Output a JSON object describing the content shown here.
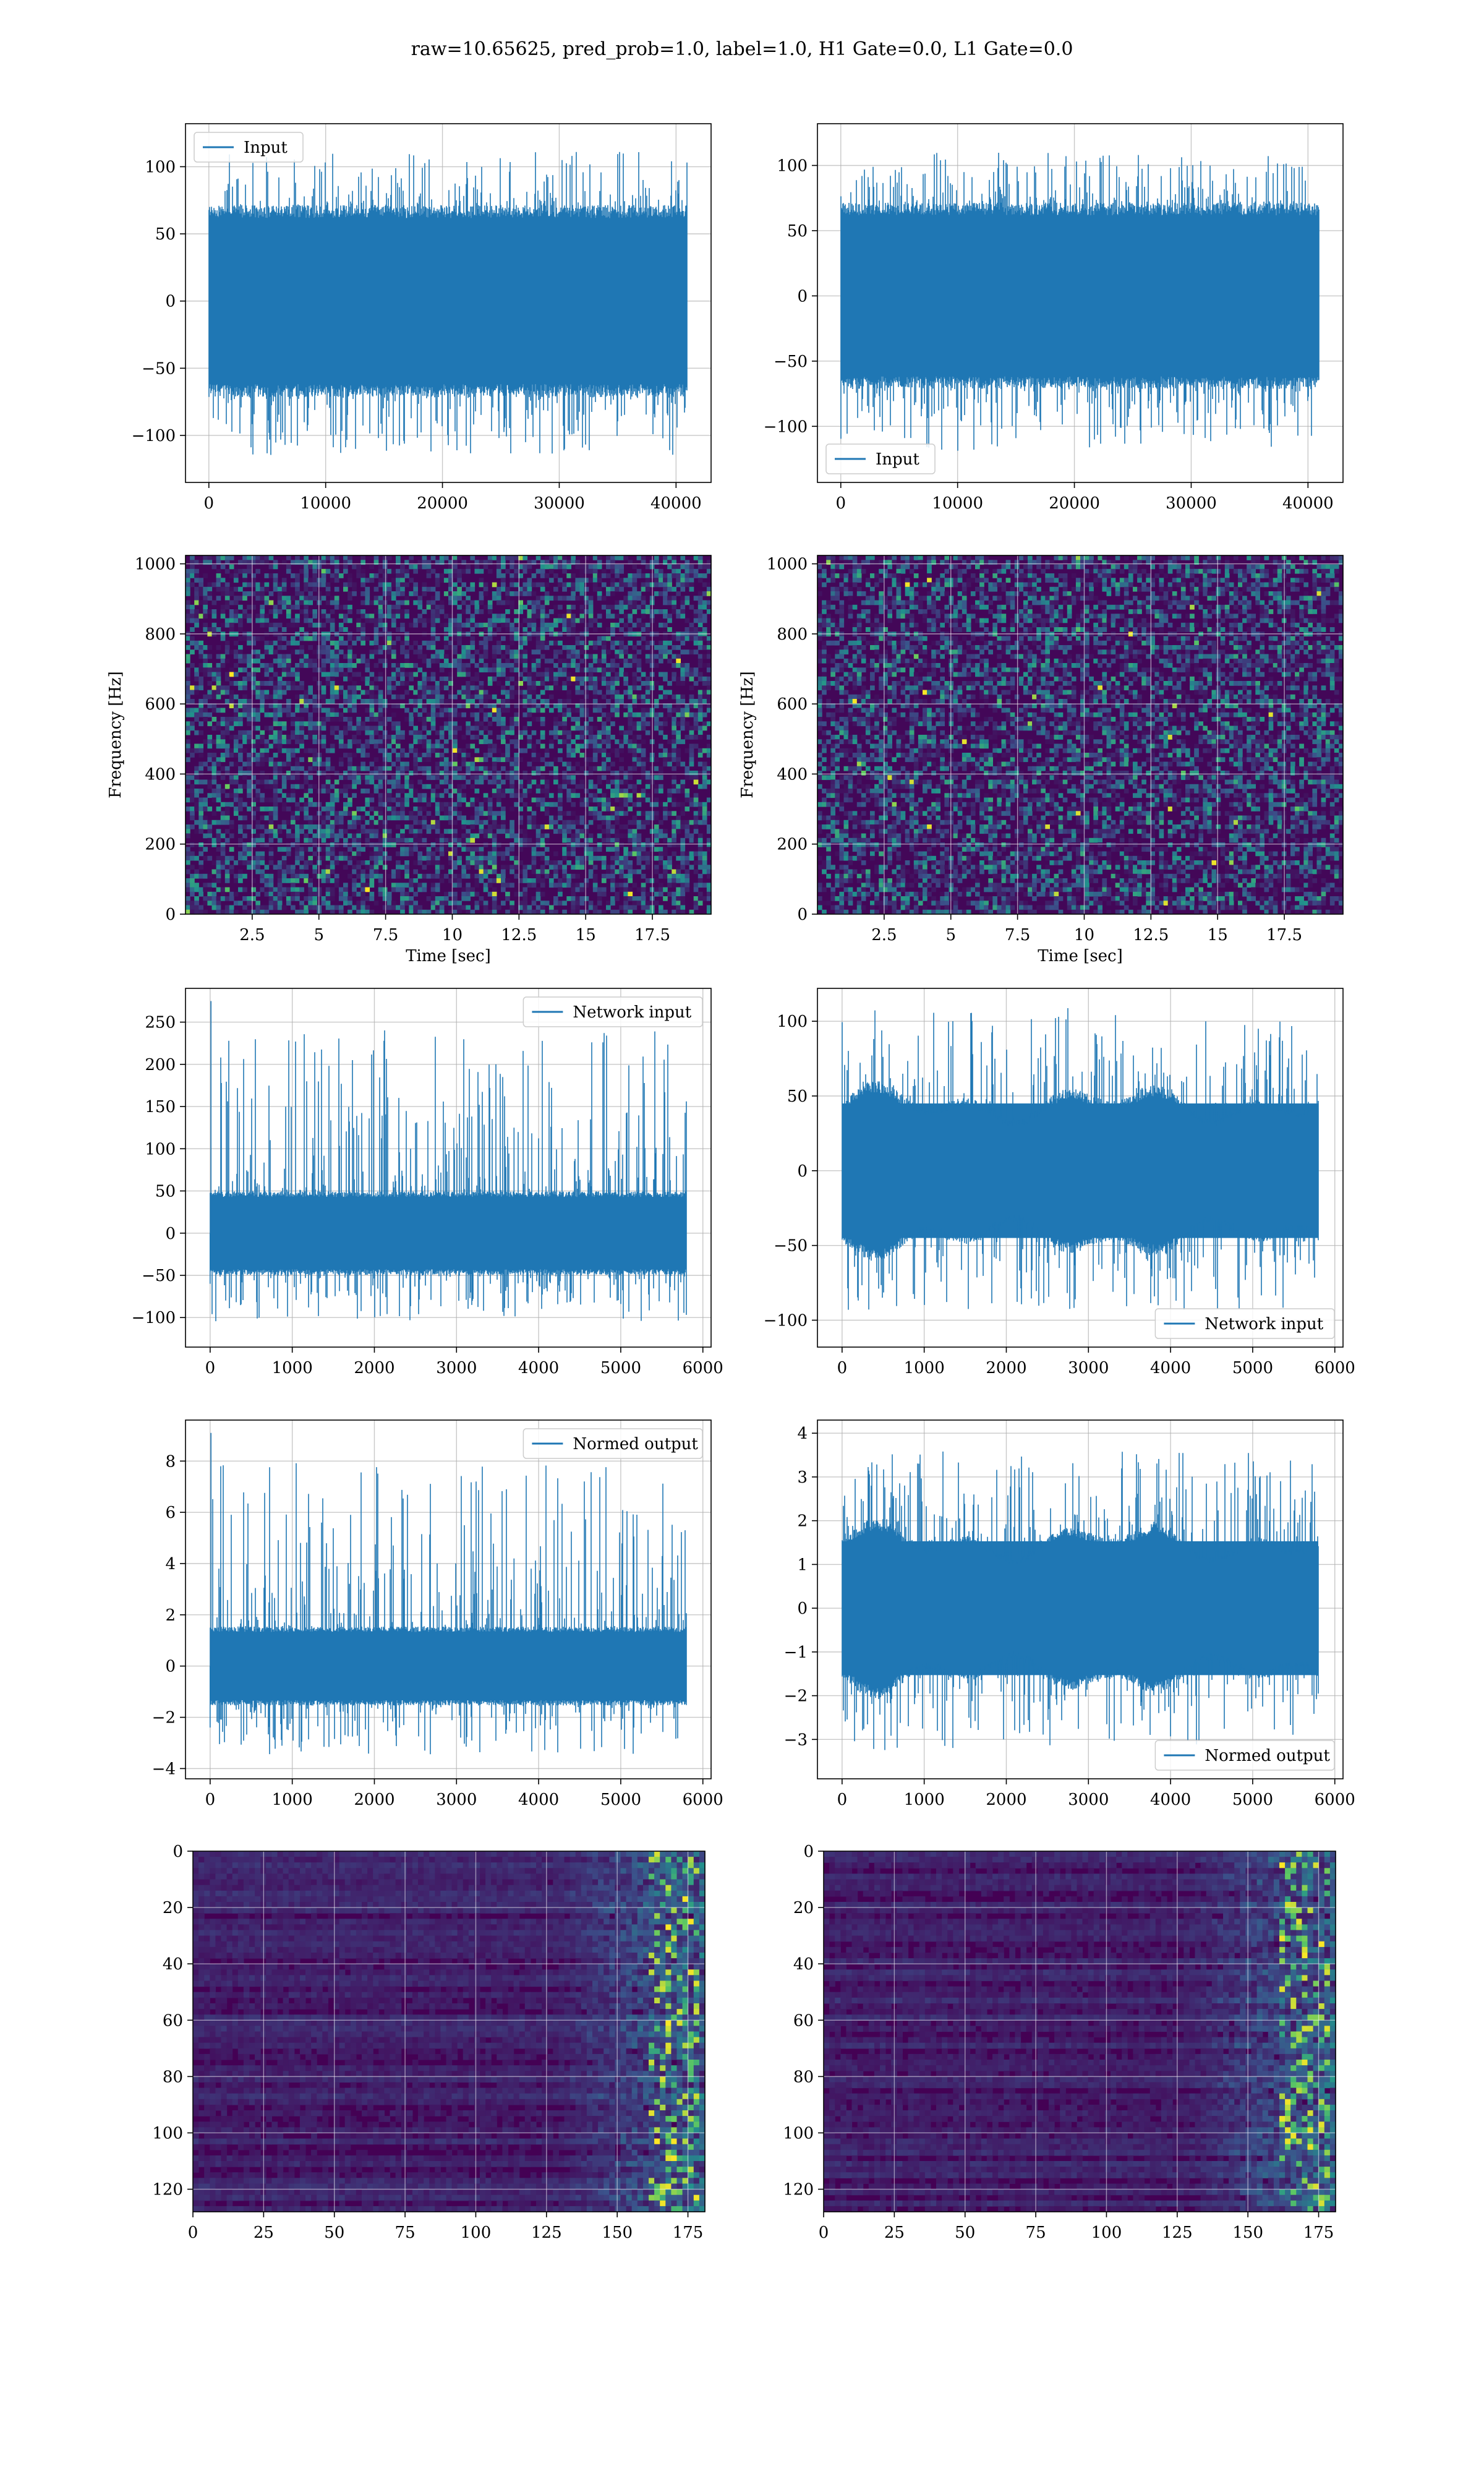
{
  "figure": {
    "title": "raw=10.65625, pred_prob=1.0, label=1.0, H1 Gate=0.0, L1 Gate=0.0",
    "line_color": "#1f77b4",
    "grid_color": "#b0b0b0"
  },
  "chart_data": [
    {
      "id": "input-h1",
      "type": "line",
      "title": "",
      "xlabel": "",
      "ylabel": "",
      "xlim": [
        -2000,
        43000
      ],
      "ylim": [
        -135,
        132
      ],
      "xticks": [
        0,
        10000,
        20000,
        30000,
        40000
      ],
      "yticks": [
        -100,
        -50,
        0,
        50,
        100
      ],
      "grid": true,
      "legend": {
        "position": "upper-left",
        "entries": [
          "Input"
        ]
      },
      "series": [
        {
          "name": "Input",
          "x_range": [
            0,
            40960
          ],
          "n_points": 40960,
          "core_range": [
            -65,
            65
          ],
          "min": -125,
          "max": 120,
          "x": [
            0,
            10000,
            20000,
            30000,
            40960
          ],
          "y": [
            0,
            0,
            0,
            0,
            0
          ]
        }
      ]
    },
    {
      "id": "input-l1",
      "type": "line",
      "title": "",
      "xlabel": "",
      "ylabel": "",
      "xlim": [
        -2000,
        43000
      ],
      "ylim": [
        -143,
        132
      ],
      "xticks": [
        0,
        10000,
        20000,
        30000,
        40000
      ],
      "yticks": [
        -100,
        -50,
        0,
        50,
        100
      ],
      "grid": true,
      "legend": {
        "position": "lower-left",
        "entries": [
          "Input"
        ]
      },
      "series": [
        {
          "name": "Input",
          "x_range": [
            0,
            40960
          ],
          "n_points": 40960,
          "core_range": [
            -65,
            65
          ],
          "min": -130,
          "max": 118,
          "x": [
            0,
            10000,
            20000,
            30000,
            40960
          ],
          "y": [
            0,
            0,
            0,
            0,
            0
          ]
        }
      ]
    },
    {
      "id": "spectrogram-h1",
      "type": "heatmap",
      "title": "",
      "xlabel": "Time [sec]",
      "ylabel": "Frequency [Hz]",
      "xlim": [
        0,
        19.7
      ],
      "ylim": [
        0,
        1024
      ],
      "xticks": [
        2.5,
        5.0,
        7.5,
        10.0,
        12.5,
        15.0,
        17.5
      ],
      "yticks": [
        0,
        200,
        400,
        600,
        800,
        1000
      ],
      "grid": true,
      "colormap": "viridis"
    },
    {
      "id": "spectrogram-l1",
      "type": "heatmap",
      "title": "",
      "xlabel": "Time [sec]",
      "ylabel": "Frequency [Hz]",
      "xlim": [
        0,
        19.7
      ],
      "ylim": [
        0,
        1024
      ],
      "xticks": [
        2.5,
        5.0,
        7.5,
        10.0,
        12.5,
        15.0,
        17.5
      ],
      "yticks": [
        0,
        200,
        400,
        600,
        800,
        1000
      ],
      "grid": true,
      "colormap": "viridis"
    },
    {
      "id": "network-input-h1",
      "type": "line",
      "title": "",
      "xlabel": "",
      "ylabel": "",
      "xlim": [
        -300,
        6100
      ],
      "ylim": [
        -135,
        290
      ],
      "xticks": [
        0,
        1000,
        2000,
        3000,
        4000,
        5000,
        6000
      ],
      "yticks": [
        -100,
        -50,
        0,
        50,
        100,
        150,
        200,
        250
      ],
      "grid": true,
      "legend": {
        "position": "upper-right",
        "entries": [
          "Network input"
        ]
      },
      "series": [
        {
          "name": "Network input",
          "x_range": [
            0,
            5800
          ],
          "n_points": 5800,
          "core_range": [
            -45,
            45
          ],
          "min": -115,
          "max": 275,
          "x": [
            0,
            10,
            3700,
            5800
          ],
          "y": [
            -60,
            275,
            125,
            0
          ]
        }
      ]
    },
    {
      "id": "network-input-l1",
      "type": "line",
      "title": "",
      "xlabel": "",
      "ylabel": "",
      "xlim": [
        -300,
        6100
      ],
      "ylim": [
        -118,
        122
      ],
      "xticks": [
        0,
        1000,
        2000,
        3000,
        4000,
        5000,
        6000
      ],
      "yticks": [
        -100,
        -50,
        0,
        50,
        100
      ],
      "grid": true,
      "legend": {
        "position": "lower-right",
        "entries": [
          "Network input"
        ]
      },
      "series": [
        {
          "name": "Network input",
          "x_range": [
            0,
            5800
          ],
          "n_points": 5800,
          "core_range": [
            -50,
            50
          ],
          "min": -103,
          "max": 120,
          "x": [
            0,
            1000,
            2000,
            3000,
            4000,
            5000,
            5800
          ],
          "y": [
            0,
            0,
            0,
            0,
            0,
            0,
            0
          ]
        }
      ]
    },
    {
      "id": "normed-output-h1",
      "type": "line",
      "title": "",
      "xlabel": "",
      "ylabel": "",
      "xlim": [
        -300,
        6100
      ],
      "ylim": [
        -4.4,
        9.6
      ],
      "xticks": [
        0,
        1000,
        2000,
        3000,
        4000,
        5000,
        6000
      ],
      "yticks": [
        -4,
        -2,
        0,
        2,
        4,
        6,
        8
      ],
      "grid": true,
      "legend": {
        "position": "upper-right",
        "entries": [
          "Normed output"
        ]
      },
      "series": [
        {
          "name": "Normed output",
          "x_range": [
            0,
            5800
          ],
          "n_points": 5800,
          "core_range": [
            -1.4,
            1.4
          ],
          "min": -3.8,
          "max": 9.1,
          "x": [
            0,
            10,
            3700,
            5800
          ],
          "y": [
            -2.4,
            9.1,
            4.2,
            0
          ]
        }
      ]
    },
    {
      "id": "normed-output-l1",
      "type": "line",
      "title": "",
      "xlabel": "",
      "ylabel": "",
      "xlim": [
        -300,
        6100
      ],
      "ylim": [
        -3.9,
        4.3
      ],
      "xticks": [
        0,
        1000,
        2000,
        3000,
        4000,
        5000,
        6000
      ],
      "yticks": [
        -3,
        -2,
        -1,
        0,
        1,
        2,
        3,
        4
      ],
      "grid": true,
      "legend": {
        "position": "lower-right",
        "entries": [
          "Normed output"
        ]
      },
      "series": [
        {
          "name": "Normed output",
          "x_range": [
            0,
            5800
          ],
          "n_points": 5800,
          "core_range": [
            -1.7,
            1.7
          ],
          "min": -3.5,
          "max": 4.0,
          "x": [
            0,
            1000,
            2000,
            3000,
            4000,
            5000,
            5800
          ],
          "y": [
            0,
            0,
            0,
            0,
            0,
            0,
            0
          ]
        }
      ]
    },
    {
      "id": "feature-map-h1",
      "type": "heatmap",
      "title": "",
      "xlabel": "",
      "ylabel": "",
      "xlim": [
        0,
        181
      ],
      "ylim": [
        128,
        0
      ],
      "rows": 128,
      "cols": 181,
      "xticks": [
        0,
        25,
        50,
        75,
        100,
        125,
        150,
        175
      ],
      "yticks": [
        0,
        20,
        40,
        60,
        80,
        100,
        120
      ],
      "grid": true,
      "colormap": "viridis"
    },
    {
      "id": "feature-map-l1",
      "type": "heatmap",
      "title": "",
      "xlabel": "",
      "ylabel": "",
      "xlim": [
        0,
        181
      ],
      "ylim": [
        128,
        0
      ],
      "rows": 128,
      "cols": 181,
      "xticks": [
        0,
        25,
        50,
        75,
        100,
        125,
        150,
        175
      ],
      "yticks": [
        0,
        20,
        40,
        60,
        80,
        100,
        120
      ],
      "grid": true,
      "colormap": "viridis"
    }
  ]
}
